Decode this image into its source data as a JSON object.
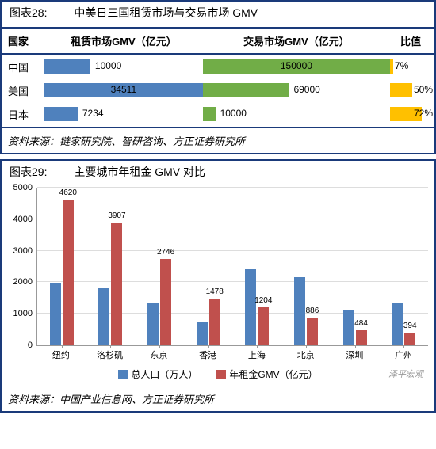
{
  "colors": {
    "border": "#1a3a7a",
    "blue": "#4f81bd",
    "green": "#71ad47",
    "orange": "#ffc000",
    "red": "#c0504d",
    "grid": "#dddddd",
    "bg": "#ffffff"
  },
  "chart28": {
    "type": "horizontal_bar_table",
    "chart_no": "图表28:",
    "title": "中美日三国租赁市场与交易市场 GMV",
    "headers": {
      "country": "国家",
      "rent": "租赁市场GMV（亿元）",
      "trade": "交易市场GMV（亿元）",
      "ratio": "比值"
    },
    "rent_axis_max": 34511,
    "trade_axis_max": 150000,
    "ratio_axis_max": 100,
    "rows": [
      {
        "country": "中国",
        "rent_value": 10000,
        "rent_label": "10000",
        "trade_value": 150000,
        "trade_label": "150000",
        "trade_label_inside": true,
        "ratio_value": 7,
        "ratio_label": "7%"
      },
      {
        "country": "美国",
        "rent_value": 34511,
        "rent_label": "34511",
        "rent_label_inside": true,
        "trade_value": 69000,
        "trade_label": "69000",
        "ratio_value": 50,
        "ratio_label": "50%"
      },
      {
        "country": "日本",
        "rent_value": 7234,
        "rent_label": "7234",
        "trade_value": 10000,
        "trade_label": "10000",
        "ratio_value": 72,
        "ratio_label": "72%"
      }
    ],
    "source": "资料来源：链家研究院、智研咨询、方正证券研究所"
  },
  "chart29": {
    "type": "grouped_bar",
    "chart_no": "图表29:",
    "title": "主要城市年租金 GMV 对比",
    "y_max": 5000,
    "y_ticks": [
      0,
      1000,
      2000,
      3000,
      4000,
      5000
    ],
    "series": [
      {
        "name": "总人口（万人）",
        "color": "#4f81bd"
      },
      {
        "name": "年租金GMV（亿元）",
        "color": "#c0504d"
      }
    ],
    "categories": [
      {
        "label": "纽约",
        "values": [
          1950,
          4620
        ],
        "value_labels": [
          "",
          "4620"
        ]
      },
      {
        "label": "洛杉矶",
        "values": [
          1800,
          3907
        ],
        "value_labels": [
          "",
          "3907"
        ]
      },
      {
        "label": "东京",
        "values": [
          1320,
          2746
        ],
        "value_labels": [
          "",
          "2746"
        ]
      },
      {
        "label": "香港",
        "values": [
          730,
          1478
        ],
        "value_labels": [
          "",
          "1478"
        ]
      },
      {
        "label": "上海",
        "values": [
          2420,
          1204
        ],
        "value_labels": [
          "",
          "1204"
        ]
      },
      {
        "label": "北京",
        "values": [
          2170,
          886
        ],
        "value_labels": [
          "",
          "886"
        ]
      },
      {
        "label": "深圳",
        "values": [
          1130,
          484
        ],
        "value_labels": [
          "",
          "484"
        ]
      },
      {
        "label": "广州",
        "values": [
          1350,
          394
        ],
        "value_labels": [
          "",
          "394"
        ]
      }
    ],
    "source": "资料来源：中国产业信息网、方正证券研究所",
    "watermark": "泽平宏观"
  }
}
